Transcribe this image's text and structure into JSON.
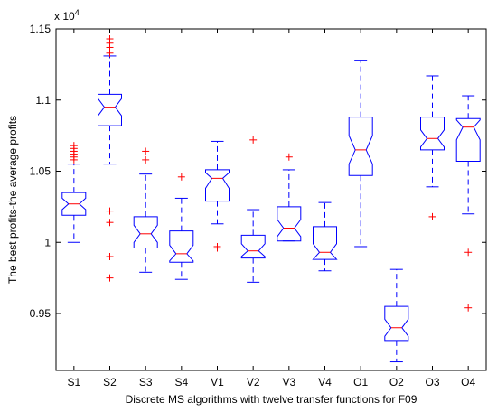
{
  "chart_data": {
    "type": "box",
    "xlabel": "Discrete MS algorithms with twelve transfer functions for F09",
    "ylabel": "The best profits-the average profits",
    "exponent_label": "x 10",
    "exponent_power": "4",
    "ylim": [
      0.91,
      1.15
    ],
    "yticks": [
      0.95,
      1,
      1.05,
      1.1,
      1.15
    ],
    "ytick_labels": [
      "0.95",
      "1",
      "1.05",
      "1.1",
      "1.15"
    ],
    "categories": [
      "S1",
      "S2",
      "S3",
      "S4",
      "V1",
      "V2",
      "V3",
      "V4",
      "O1",
      "O2",
      "O3",
      "O4"
    ],
    "boxes": [
      {
        "name": "S1",
        "whisker_low": 1.0,
        "q1": 1.019,
        "median": 1.027,
        "q3": 1.035,
        "whisker_high": 1.055,
        "notch_low": 1.023,
        "notch_high": 1.031,
        "outliers": [
          1.058,
          1.06,
          1.062,
          1.064,
          1.066,
          1.068
        ]
      },
      {
        "name": "S2",
        "whisker_low": 1.055,
        "q1": 1.082,
        "median": 1.095,
        "q3": 1.104,
        "whisker_high": 1.131,
        "notch_low": 1.089,
        "notch_high": 1.101,
        "outliers": [
          1.133,
          1.137,
          1.14,
          1.143,
          1.022,
          1.014,
          0.99,
          0.975
        ]
      },
      {
        "name": "S3",
        "whisker_low": 0.979,
        "q1": 0.996,
        "median": 1.006,
        "q3": 1.018,
        "whisker_high": 1.048,
        "notch_low": 1.0,
        "notch_high": 1.012,
        "outliers": [
          1.058,
          1.064
        ]
      },
      {
        "name": "S4",
        "whisker_low": 0.974,
        "q1": 0.986,
        "median": 0.992,
        "q3": 1.008,
        "whisker_high": 1.031,
        "notch_low": 0.987,
        "notch_high": 0.998,
        "outliers": [
          1.046
        ]
      },
      {
        "name": "V1",
        "whisker_low": 1.013,
        "q1": 1.029,
        "median": 1.045,
        "q3": 1.051,
        "whisker_high": 1.071,
        "notch_low": 1.038,
        "notch_high": 1.049,
        "outliers": [
          0.997,
          0.996
        ]
      },
      {
        "name": "V2",
        "whisker_low": 0.972,
        "q1": 0.989,
        "median": 0.994,
        "q3": 1.005,
        "whisker_high": 1.023,
        "notch_low": 0.99,
        "notch_high": 0.999,
        "outliers": [
          1.072
        ]
      },
      {
        "name": "V3",
        "whisker_low": 1.001,
        "q1": 1.001,
        "median": 1.01,
        "q3": 1.025,
        "whisker_high": 1.051,
        "notch_low": 1.004,
        "notch_high": 1.016,
        "outliers": [
          1.06
        ]
      },
      {
        "name": "V4",
        "whisker_low": 0.98,
        "q1": 0.988,
        "median": 0.993,
        "q3": 1.011,
        "whisker_high": 1.028,
        "notch_low": 0.988,
        "notch_high": 0.999,
        "outliers": []
      },
      {
        "name": "O1",
        "whisker_low": 0.997,
        "q1": 1.047,
        "median": 1.065,
        "q3": 1.088,
        "whisker_high": 1.128,
        "notch_low": 1.055,
        "notch_high": 1.075,
        "outliers": []
      },
      {
        "name": "O2",
        "whisker_low": 0.916,
        "q1": 0.931,
        "median": 0.94,
        "q3": 0.955,
        "whisker_high": 0.981,
        "notch_low": 0.934,
        "notch_high": 0.946,
        "outliers": []
      },
      {
        "name": "O3",
        "whisker_low": 1.039,
        "q1": 1.065,
        "median": 1.073,
        "q3": 1.088,
        "whisker_high": 1.117,
        "notch_low": 1.067,
        "notch_high": 1.079,
        "outliers": [
          1.018
        ]
      },
      {
        "name": "O4",
        "whisker_low": 1.02,
        "q1": 1.057,
        "median": 1.081,
        "q3": 1.087,
        "whisker_high": 1.103,
        "notch_low": 1.072,
        "notch_high": 1.086,
        "outliers": [
          0.993,
          0.954
        ]
      }
    ],
    "colors": {
      "box": "#0000ff",
      "median": "#ff0000",
      "outlier": "#ff0000",
      "axis": "#000000",
      "background": "#ffffff"
    },
    "grid": false,
    "legend": "none"
  }
}
